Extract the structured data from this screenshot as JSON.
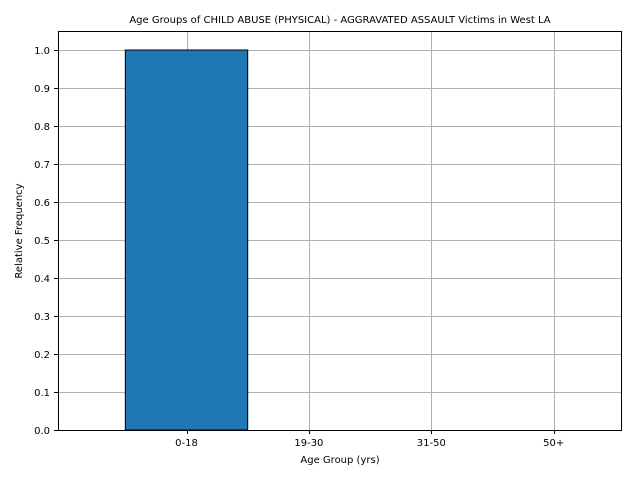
{
  "chart_data": {
    "type": "bar",
    "title": "Age Groups of CHILD ABUSE (PHYSICAL) - AGGRAVATED ASSAULT Victims in West LA",
    "xlabel": "Age Group (yrs)",
    "ylabel": "Relative Frequency",
    "categories": [
      "0-18",
      "19-30",
      "31-50",
      "50+"
    ],
    "values": [
      1.0,
      0.0,
      0.0,
      0.0
    ],
    "ylim": [
      0,
      1.05
    ],
    "yticks": [
      0.0,
      0.1,
      0.2,
      0.3,
      0.4,
      0.5,
      0.6,
      0.7,
      0.8,
      0.9,
      1.0
    ],
    "ytick_labels": [
      "0.0",
      "0.1",
      "0.2",
      "0.3",
      "0.4",
      "0.5",
      "0.6",
      "0.7",
      "0.8",
      "0.9",
      "1.0"
    ],
    "grid": true,
    "legend": "none",
    "bar_color": "#1f77b4",
    "bar_edge_color": "#000000"
  }
}
